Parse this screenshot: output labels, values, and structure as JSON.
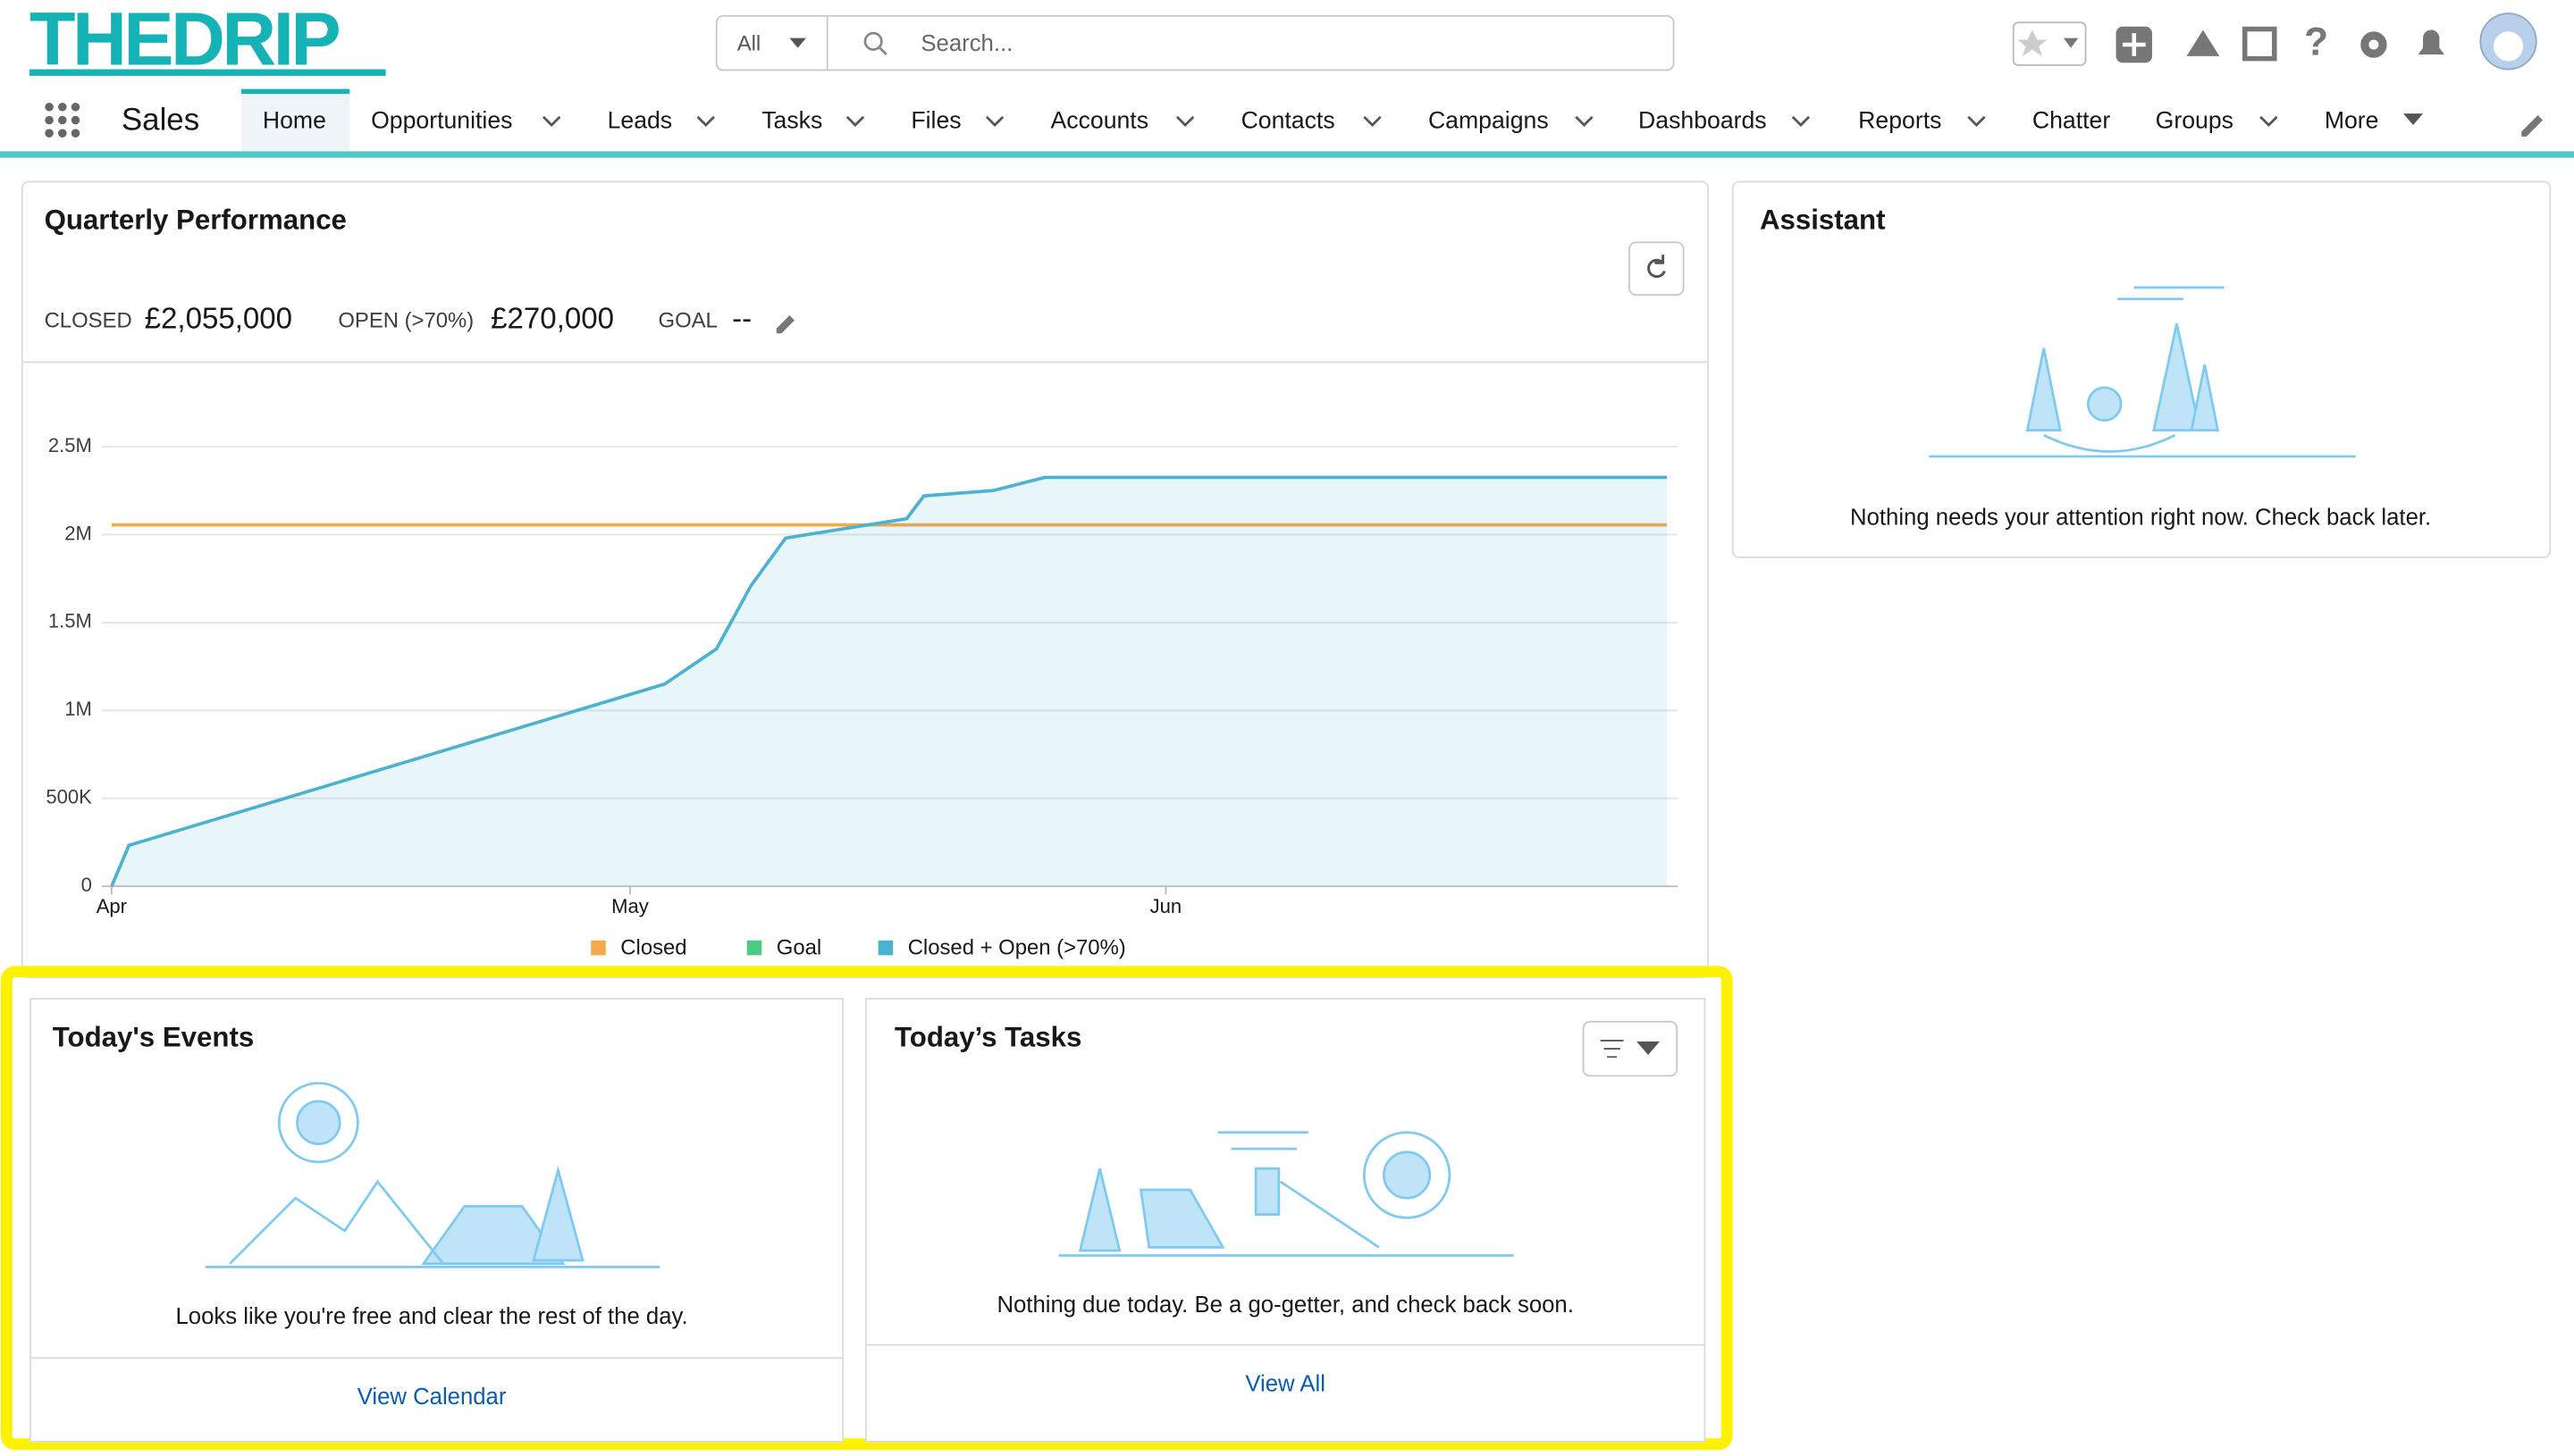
{
  "header": {
    "logo": "THEDRIP",
    "scope": "All",
    "search_placeholder": "Search..."
  },
  "nav": {
    "app": "Sales",
    "items": [
      "Home",
      "Opportunities",
      "Leads",
      "Tasks",
      "Files",
      "Accounts",
      "Contacts",
      "Campaigns",
      "Dashboards",
      "Reports",
      "Chatter",
      "Groups",
      "More"
    ]
  },
  "performance": {
    "title": "Quarterly Performance",
    "closed_label": "CLOSED",
    "closed": "£2,055,000",
    "open_label": "OPEN (>70%)",
    "open": "£270,000",
    "goal_label": "GOAL",
    "goal": "--"
  },
  "chart_data": {
    "type": "line",
    "xlim": [
      0,
      91
    ],
    "xticks": [
      {
        "value": 0,
        "label": "Apr"
      },
      {
        "value": 30,
        "label": "May"
      },
      {
        "value": 61,
        "label": "Jun"
      }
    ],
    "ylim": [
      0,
      2500000
    ],
    "yticks": [
      0,
      {
        "value": 500000,
        "label": "500K"
      },
      {
        "value": 1000000,
        "label": "1M"
      },
      {
        "value": 1500000,
        "label": "1.5M"
      },
      {
        "value": 2000000,
        "label": "2M"
      },
      {
        "value": 2500000,
        "label": "2.5M"
      }
    ],
    "grid": true,
    "series": [
      {
        "name": "Closed",
        "color": "#f4a94e",
        "x": [
          0,
          90
        ],
        "values": [
          2055000,
          2055000
        ]
      },
      {
        "name": "Goal",
        "color": "#4bca81"
      },
      {
        "name": "Closed + Open (>70%)",
        "color": "#4bb2cf",
        "area": true,
        "x": [
          0,
          1,
          32,
          35,
          37,
          39,
          46,
          47,
          51,
          54,
          90
        ],
        "values": [
          0,
          233000,
          1150000,
          1350000,
          1710000,
          1980000,
          2090000,
          2220000,
          2250000,
          2325000,
          2325000
        ]
      }
    ]
  },
  "assistant": {
    "title": "Assistant",
    "message": "Nothing needs your attention right now. Check back later."
  },
  "events": {
    "title": "Today's Events",
    "message": "Looks like you're free and clear the rest of the day.",
    "link": "View Calendar"
  },
  "tasks": {
    "title": "Today’s Tasks",
    "message": "Nothing due today. Be a go-getter, and check back soon.",
    "link": "View All"
  }
}
